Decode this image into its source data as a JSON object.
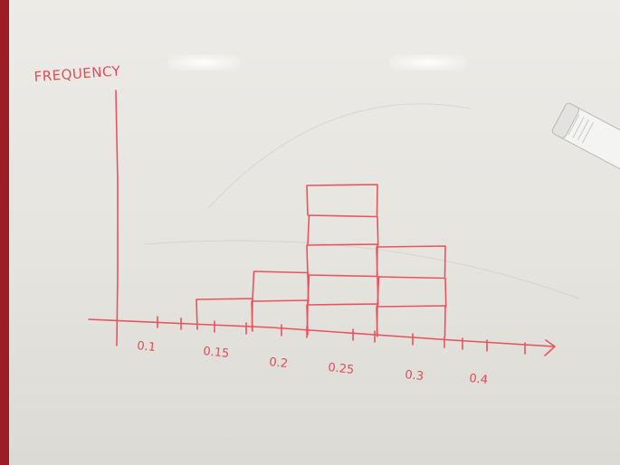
{
  "y_axis_label": "FREQUENCY",
  "x_tick_labels": [
    "0.1",
    "0.15",
    "0.2",
    "0.25",
    "0.3",
    "0.4"
  ],
  "ink_color": "#e8545e",
  "board_color": "#e9e8e4",
  "frame_color": "#9a1e24",
  "chart_data": {
    "type": "bar",
    "ylabel": "FREQUENCY",
    "xlabel": "",
    "categories": [
      "0.15",
      "0.2",
      "0.25",
      "0.3"
    ],
    "values": [
      1,
      2,
      5,
      3
    ],
    "ylim": [
      0,
      5
    ],
    "grid": false
  }
}
